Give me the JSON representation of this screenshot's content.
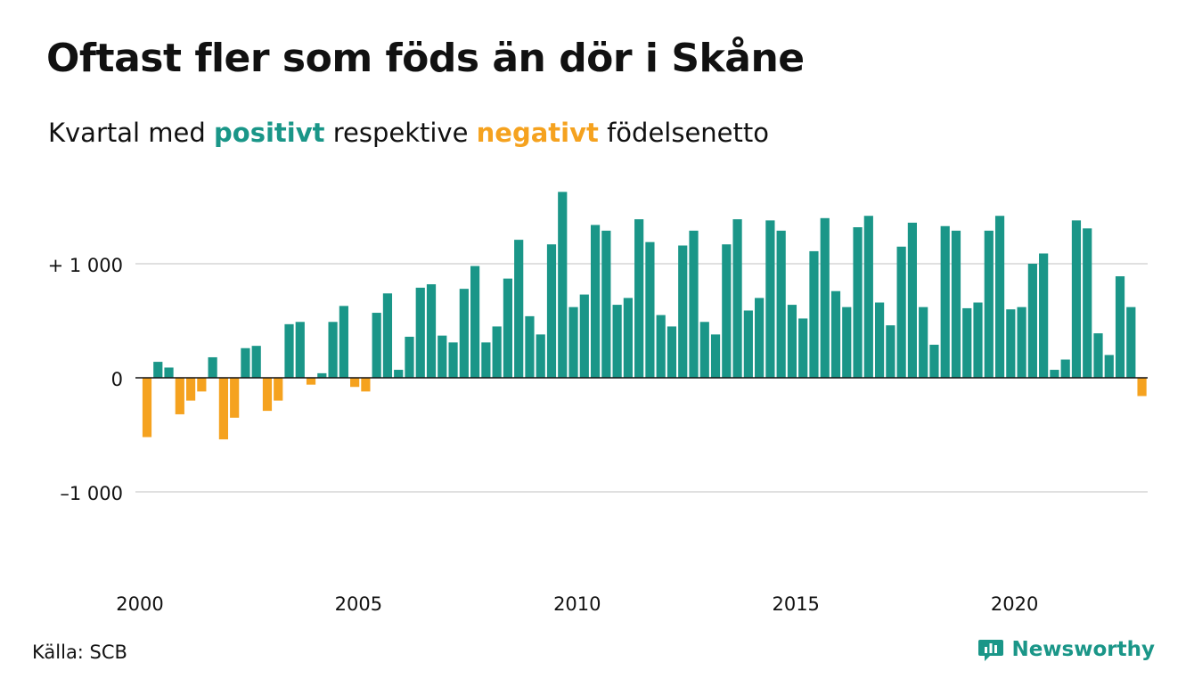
{
  "title": "Oftast fler som föds än dör i Skåne",
  "subtitle": {
    "prefix": "Kvartal med",
    "positive": "positivt",
    "middle": "respektive",
    "negative": "negativt",
    "suffix": "födelsenetto"
  },
  "source": "Källa: SCB",
  "brand": "Newsworthy",
  "colors": {
    "positive": "#1a9688",
    "negative": "#f5a21f",
    "grid": "#e0e0e0",
    "zero": "#111111",
    "text": "#111111"
  },
  "chart_data": {
    "type": "bar",
    "x_start_year": 2000,
    "x_ticks": [
      2000,
      2005,
      2010,
      2015,
      2020
    ],
    "x_tick_labels": [
      "2000",
      "2005",
      "2010",
      "2015",
      "2020"
    ],
    "y_ticks": [
      1000,
      0,
      -1000
    ],
    "y_tick_labels": [
      "+ 1 000",
      "0",
      "–1 000"
    ],
    "ylim": [
      -1700,
      1700
    ],
    "grid": true,
    "values": [
      -520,
      140,
      90,
      -320,
      -200,
      -120,
      180,
      -540,
      -350,
      260,
      280,
      -290,
      -200,
      470,
      490,
      -60,
      40,
      490,
      630,
      -80,
      -120,
      570,
      740,
      70,
      360,
      790,
      820,
      370,
      310,
      780,
      980,
      310,
      450,
      870,
      1210,
      540,
      380,
      1170,
      1630,
      620,
      730,
      1340,
      1290,
      640,
      700,
      1390,
      1190,
      550,
      450,
      1160,
      1290,
      490,
      380,
      1170,
      1390,
      590,
      700,
      1380,
      1290,
      640,
      520,
      1110,
      1400,
      760,
      620,
      1320,
      1420,
      660,
      460,
      1150,
      1360,
      620,
      290,
      1330,
      1290,
      610,
      660,
      1290,
      1420,
      600,
      620,
      1000,
      1090,
      70,
      160,
      1380,
      1310,
      390,
      200,
      890,
      620,
      -160
    ]
  }
}
